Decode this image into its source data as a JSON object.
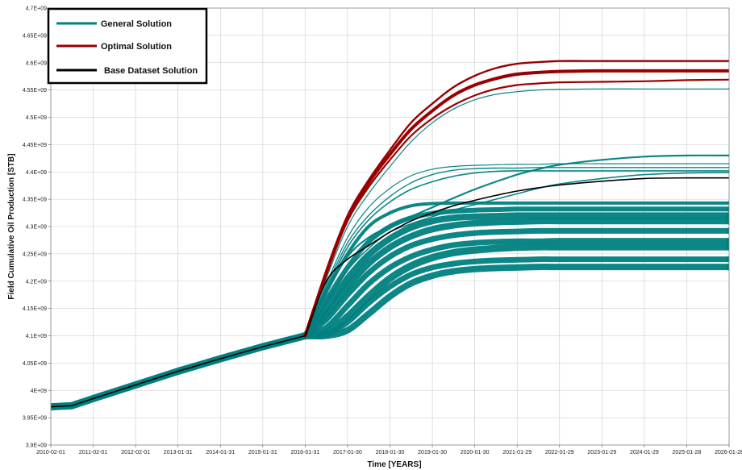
{
  "chart_data": {
    "type": "line",
    "title": "",
    "xlabel": "Time [YEARS]",
    "ylabel": "Field Cumulative Oil Production [STB]",
    "xlim": [
      "2010-02-01",
      "2026-01-28"
    ],
    "ylim": [
      3900000000,
      4700000000
    ],
    "grid": true,
    "legend_position": "top-left",
    "x_tick_labels": [
      "2010-02-01",
      "2011-02-01",
      "2012-02-01",
      "2013-01-31",
      "2014-01-31",
      "2015-01-31",
      "2016-01-31",
      "2017-01-30",
      "2018-01-30",
      "2019-01-30",
      "2020-01-30",
      "2021-01-29",
      "2022-01-29",
      "2023-01-29",
      "2024-01-29",
      "2025-01-28",
      "2026-01-28"
    ],
    "y_tick_labels": [
      "3.9E+09",
      "3.95E+09",
      "4E+09",
      "4.05E+09",
      "4.1E+09",
      "4.15E+09",
      "4.2E+09",
      "4.25E+09",
      "4.3E+09",
      "4.35E+09",
      "4.4E+09",
      "4.45E+09",
      "4.5E+09",
      "4.55E+09",
      "4.6E+09",
      "4.65E+09",
      "4.7E+09"
    ],
    "colors": {
      "general": "#008080",
      "optimal": "#990000",
      "base": "#000000"
    },
    "history": {
      "x": [
        "2010-02-01",
        "2010-08-01",
        "2011-02-01",
        "2012-02-01",
        "2013-01-31",
        "2014-01-31",
        "2015-01-31",
        "2016-01-31"
      ],
      "y": [
        3970000000,
        3972000000,
        3985000000,
        4010000000,
        4035000000,
        4058000000,
        4080000000,
        4100000000
      ]
    },
    "forecast_x": [
      "2016-01-31",
      "2016-07-31",
      "2017-01-30",
      "2017-07-30",
      "2018-01-30",
      "2018-07-30",
      "2019-01-30",
      "2019-07-30",
      "2020-01-30",
      "2020-07-30",
      "2021-01-29",
      "2021-07-29",
      "2022-01-29",
      "2023-01-29",
      "2024-01-29",
      "2025-01-28",
      "2026-01-28"
    ],
    "series": [
      {
        "name": "Base Dataset Solution",
        "values": [
          4100000000,
          4200000000,
          4240000000,
          4265000000,
          4290000000,
          4310000000,
          4325000000,
          4338000000,
          4348000000,
          4357000000,
          4365000000,
          4371000000,
          4376000000,
          4383000000,
          4388000000,
          4389000000,
          4389000000
        ]
      },
      {
        "name": "Optimal Solution",
        "runs": [
          [
            4100000000,
            4220000000,
            4320000000,
            4385000000,
            4440000000,
            4490000000,
            4525000000,
            4555000000,
            4576000000,
            4590000000,
            4598000000,
            4601000000,
            4603000000,
            4603000000,
            4603000000,
            4603000000,
            4603000000
          ],
          [
            4100000000,
            4215000000,
            4315000000,
            4380000000,
            4432000000,
            4478000000,
            4512000000,
            4540000000,
            4559000000,
            4571000000,
            4579000000,
            4582000000,
            4584000000,
            4585000000,
            4585000000,
            4585000000,
            4585000000
          ],
          [
            4100000000,
            4212000000,
            4310000000,
            4372000000,
            4422000000,
            4466000000,
            4498000000,
            4522000000,
            4540000000,
            4552000000,
            4559000000,
            4562000000,
            4564000000,
            4565000000,
            4566000000,
            4568000000,
            4569000000
          ]
        ]
      },
      {
        "name": "General Solution",
        "runs": [
          [
            4100000000,
            4205000000,
            4300000000,
            4360000000,
            4410000000,
            4455000000,
            4490000000,
            4515000000,
            4532000000,
            4542000000,
            4547000000,
            4550000000,
            4551000000,
            4552000000,
            4552000000,
            4552000000,
            4552000000
          ],
          [
            4100000000,
            4195000000,
            4280000000,
            4335000000,
            4370000000,
            4393000000,
            4405000000,
            4410000000,
            4412000000,
            4413000000,
            4414000000,
            4414000000,
            4415000000,
            4415000000,
            4415000000,
            4415000000,
            4415000000
          ],
          [
            4100000000,
            4190000000,
            4270000000,
            4320000000,
            4355000000,
            4380000000,
            4395000000,
            4403000000,
            4406000000,
            4407000000,
            4407000000,
            4408000000,
            4408000000,
            4408000000,
            4408000000,
            4408000000,
            4408000000
          ],
          [
            4100000000,
            4185000000,
            4262000000,
            4312000000,
            4345000000,
            4368000000,
            4382000000,
            4392000000,
            4398000000,
            4401000000,
            4402000000,
            4402000000,
            4402000000,
            4402000000,
            4402000000,
            4402000000,
            4402000000
          ],
          [
            4100000000,
            4180000000,
            4245000000,
            4280000000,
            4300000000,
            4318000000,
            4335000000,
            4352000000,
            4368000000,
            4382000000,
            4395000000,
            4405000000,
            4413000000,
            4422000000,
            4428000000,
            4430000000,
            4430000000
          ],
          [
            4100000000,
            4160000000,
            4220000000,
            4260000000,
            4290000000,
            4305000000,
            4318000000,
            4330000000,
            4340000000,
            4350000000,
            4360000000,
            4370000000,
            4378000000,
            4388000000,
            4395000000,
            4398000000,
            4399000000
          ],
          [
            4100000000,
            4180000000,
            4250000000,
            4300000000,
            4325000000,
            4338000000,
            4342000000,
            4343000000,
            4343000000,
            4343000000,
            4343000000,
            4343000000,
            4343000000,
            4343000000,
            4343000000,
            4343000000,
            4343000000
          ],
          [
            4100000000,
            4165000000,
            4225000000,
            4272000000,
            4300000000,
            4316000000,
            4324000000,
            4328000000,
            4330000000,
            4331000000,
            4332000000,
            4332000000,
            4332000000,
            4332000000,
            4332000000,
            4332000000,
            4332000000
          ],
          [
            4100000000,
            4150000000,
            4205000000,
            4248000000,
            4278000000,
            4298000000,
            4310000000,
            4316000000,
            4318000000,
            4319000000,
            4320000000,
            4320000000,
            4320000000,
            4320000000,
            4320000000,
            4320000000,
            4320000000
          ],
          [
            4100000000,
            4140000000,
            4190000000,
            4232000000,
            4262000000,
            4282000000,
            4295000000,
            4302000000,
            4306000000,
            4308000000,
            4309000000,
            4310000000,
            4310000000,
            4310000000,
            4310000000,
            4310000000,
            4310000000
          ],
          [
            4100000000,
            4130000000,
            4175000000,
            4215000000,
            4245000000,
            4265000000,
            4277000000,
            4284000000,
            4288000000,
            4290000000,
            4291000000,
            4292000000,
            4292000000,
            4292000000,
            4292000000,
            4292000000,
            4292000000
          ],
          [
            4100000000,
            4115000000,
            4155000000,
            4195000000,
            4225000000,
            4245000000,
            4258000000,
            4266000000,
            4270000000,
            4272000000,
            4273000000,
            4273000000,
            4274000000,
            4274000000,
            4274000000,
            4274000000,
            4274000000
          ],
          [
            4100000000,
            4105000000,
            4135000000,
            4172000000,
            4205000000,
            4228000000,
            4243000000,
            4252000000,
            4257000000,
            4260000000,
            4262000000,
            4263000000,
            4263000000,
            4263000000,
            4263000000,
            4263000000,
            4263000000
          ],
          [
            4100000000,
            4100000000,
            4110000000,
            4140000000,
            4172000000,
            4196000000,
            4210000000,
            4218000000,
            4222000000,
            4224000000,
            4225000000,
            4226000000,
            4226000000,
            4226000000,
            4226000000,
            4226000000,
            4226000000
          ],
          [
            4100000000,
            4102000000,
            4125000000,
            4160000000,
            4190000000,
            4212000000,
            4225000000,
            4232000000,
            4236000000,
            4238000000,
            4239000000,
            4240000000,
            4240000000,
            4240000000,
            4240000000,
            4240000000,
            4240000000
          ]
        ]
      }
    ]
  }
}
